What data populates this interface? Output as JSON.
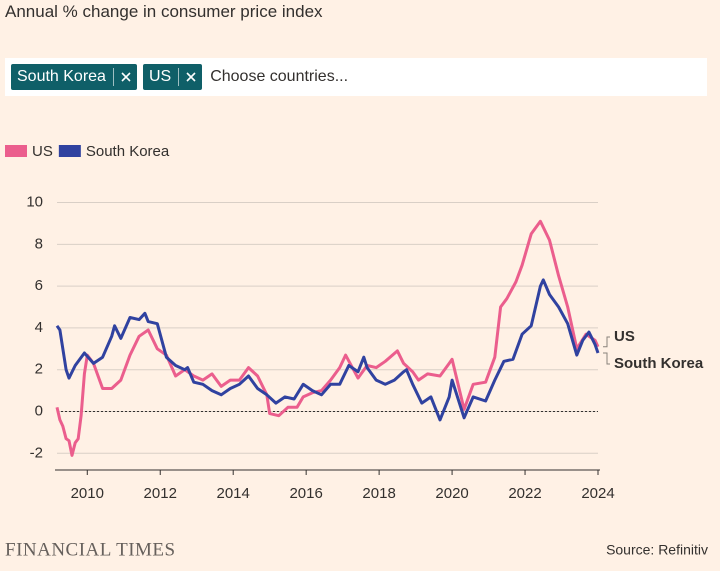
{
  "chart_data": {
    "type": "line",
    "title": "Annual % change in consumer price index",
    "xlim": [
      2009.17,
      2024.0
    ],
    "xticks": [
      2010,
      2012,
      2014,
      2016,
      2018,
      2020,
      2022,
      2024
    ],
    "ylim": [
      -2.8,
      10.6
    ],
    "yticks": [
      -2,
      0,
      2,
      4,
      6,
      8,
      10
    ],
    "grid": true,
    "series": [
      {
        "name": "US",
        "color": "#eb5e8d",
        "x": [
          2009.17,
          2009.25,
          2009.33,
          2009.42,
          2009.5,
          2009.58,
          2009.67,
          2009.75,
          2009.83,
          2009.92,
          2010.0,
          2010.17,
          2010.42,
          2010.67,
          2010.92,
          2011.17,
          2011.42,
          2011.67,
          2011.92,
          2012.17,
          2012.42,
          2012.67,
          2012.92,
          2013.17,
          2013.42,
          2013.67,
          2013.92,
          2014.17,
          2014.42,
          2014.67,
          2014.92,
          2015.0,
          2015.25,
          2015.5,
          2015.75,
          2015.92,
          2016.17,
          2016.42,
          2016.67,
          2016.92,
          2017.08,
          2017.42,
          2017.67,
          2017.92,
          2018.17,
          2018.5,
          2018.67,
          2018.92,
          2019.08,
          2019.33,
          2019.67,
          2019.92,
          2020.0,
          2020.33,
          2020.58,
          2020.92,
          2021.17,
          2021.33,
          2021.5,
          2021.75,
          2021.92,
          2022.17,
          2022.42,
          2022.67,
          2022.92,
          2023.17,
          2023.42,
          2023.67,
          2023.92,
          2024.0
        ],
        "values": [
          0.2,
          -0.4,
          -0.7,
          -1.3,
          -1.4,
          -2.1,
          -1.5,
          -1.3,
          -0.2,
          1.8,
          2.7,
          2.3,
          1.1,
          1.1,
          1.5,
          2.7,
          3.6,
          3.9,
          3.0,
          2.7,
          1.7,
          2.0,
          1.7,
          1.5,
          1.8,
          1.2,
          1.5,
          1.5,
          2.1,
          1.7,
          0.8,
          -0.1,
          -0.2,
          0.2,
          0.2,
          0.7,
          0.9,
          1.0,
          1.5,
          2.1,
          2.7,
          1.6,
          2.2,
          2.1,
          2.4,
          2.9,
          2.3,
          1.9,
          1.5,
          1.8,
          1.7,
          2.3,
          2.5,
          0.1,
          1.3,
          1.4,
          2.6,
          5.0,
          5.4,
          6.2,
          7.0,
          8.5,
          9.1,
          8.2,
          6.5,
          5.0,
          3.0,
          3.7,
          3.4,
          3.1
        ]
      },
      {
        "name": "South Korea",
        "color": "#3042a0",
        "x": [
          2009.17,
          2009.25,
          2009.42,
          2009.5,
          2009.67,
          2009.92,
          2010.17,
          2010.42,
          2010.67,
          2010.75,
          2010.92,
          2011.17,
          2011.42,
          2011.58,
          2011.67,
          2011.92,
          2012.17,
          2012.42,
          2012.67,
          2012.75,
          2012.92,
          2013.17,
          2013.42,
          2013.67,
          2013.92,
          2014.17,
          2014.42,
          2014.67,
          2014.92,
          2015.17,
          2015.42,
          2015.67,
          2015.92,
          2016.17,
          2016.42,
          2016.67,
          2016.92,
          2017.17,
          2017.42,
          2017.58,
          2017.67,
          2017.92,
          2018.17,
          2018.42,
          2018.67,
          2018.75,
          2018.92,
          2019.17,
          2019.42,
          2019.67,
          2019.92,
          2020.0,
          2020.33,
          2020.58,
          2020.92,
          2021.17,
          2021.42,
          2021.67,
          2021.92,
          2022.17,
          2022.42,
          2022.5,
          2022.67,
          2022.92,
          2023.17,
          2023.42,
          2023.58,
          2023.75,
          2023.92,
          2024.0
        ],
        "values": [
          4.1,
          3.9,
          2.0,
          1.6,
          2.2,
          2.8,
          2.3,
          2.6,
          3.6,
          4.1,
          3.5,
          4.5,
          4.4,
          4.7,
          4.3,
          4.2,
          2.6,
          2.2,
          2.0,
          2.1,
          1.4,
          1.3,
          1.0,
          0.8,
          1.1,
          1.3,
          1.7,
          1.1,
          0.8,
          0.4,
          0.7,
          0.6,
          1.3,
          1.0,
          0.8,
          1.3,
          1.3,
          2.2,
          1.9,
          2.6,
          2.1,
          1.5,
          1.3,
          1.5,
          1.9,
          2.0,
          1.3,
          0.4,
          0.7,
          -0.4,
          0.7,
          1.5,
          -0.3,
          0.7,
          0.5,
          1.5,
          2.4,
          2.5,
          3.7,
          4.1,
          6.0,
          6.3,
          5.6,
          5.0,
          4.2,
          2.7,
          3.4,
          3.8,
          3.2,
          2.8
        ]
      }
    ]
  },
  "ui": {
    "chips": [
      "South Korea",
      "US"
    ],
    "placeholder": "Choose countries..."
  },
  "footer": {
    "brand": "FINANCIAL TIMES",
    "source": "Source: Refinitiv"
  }
}
